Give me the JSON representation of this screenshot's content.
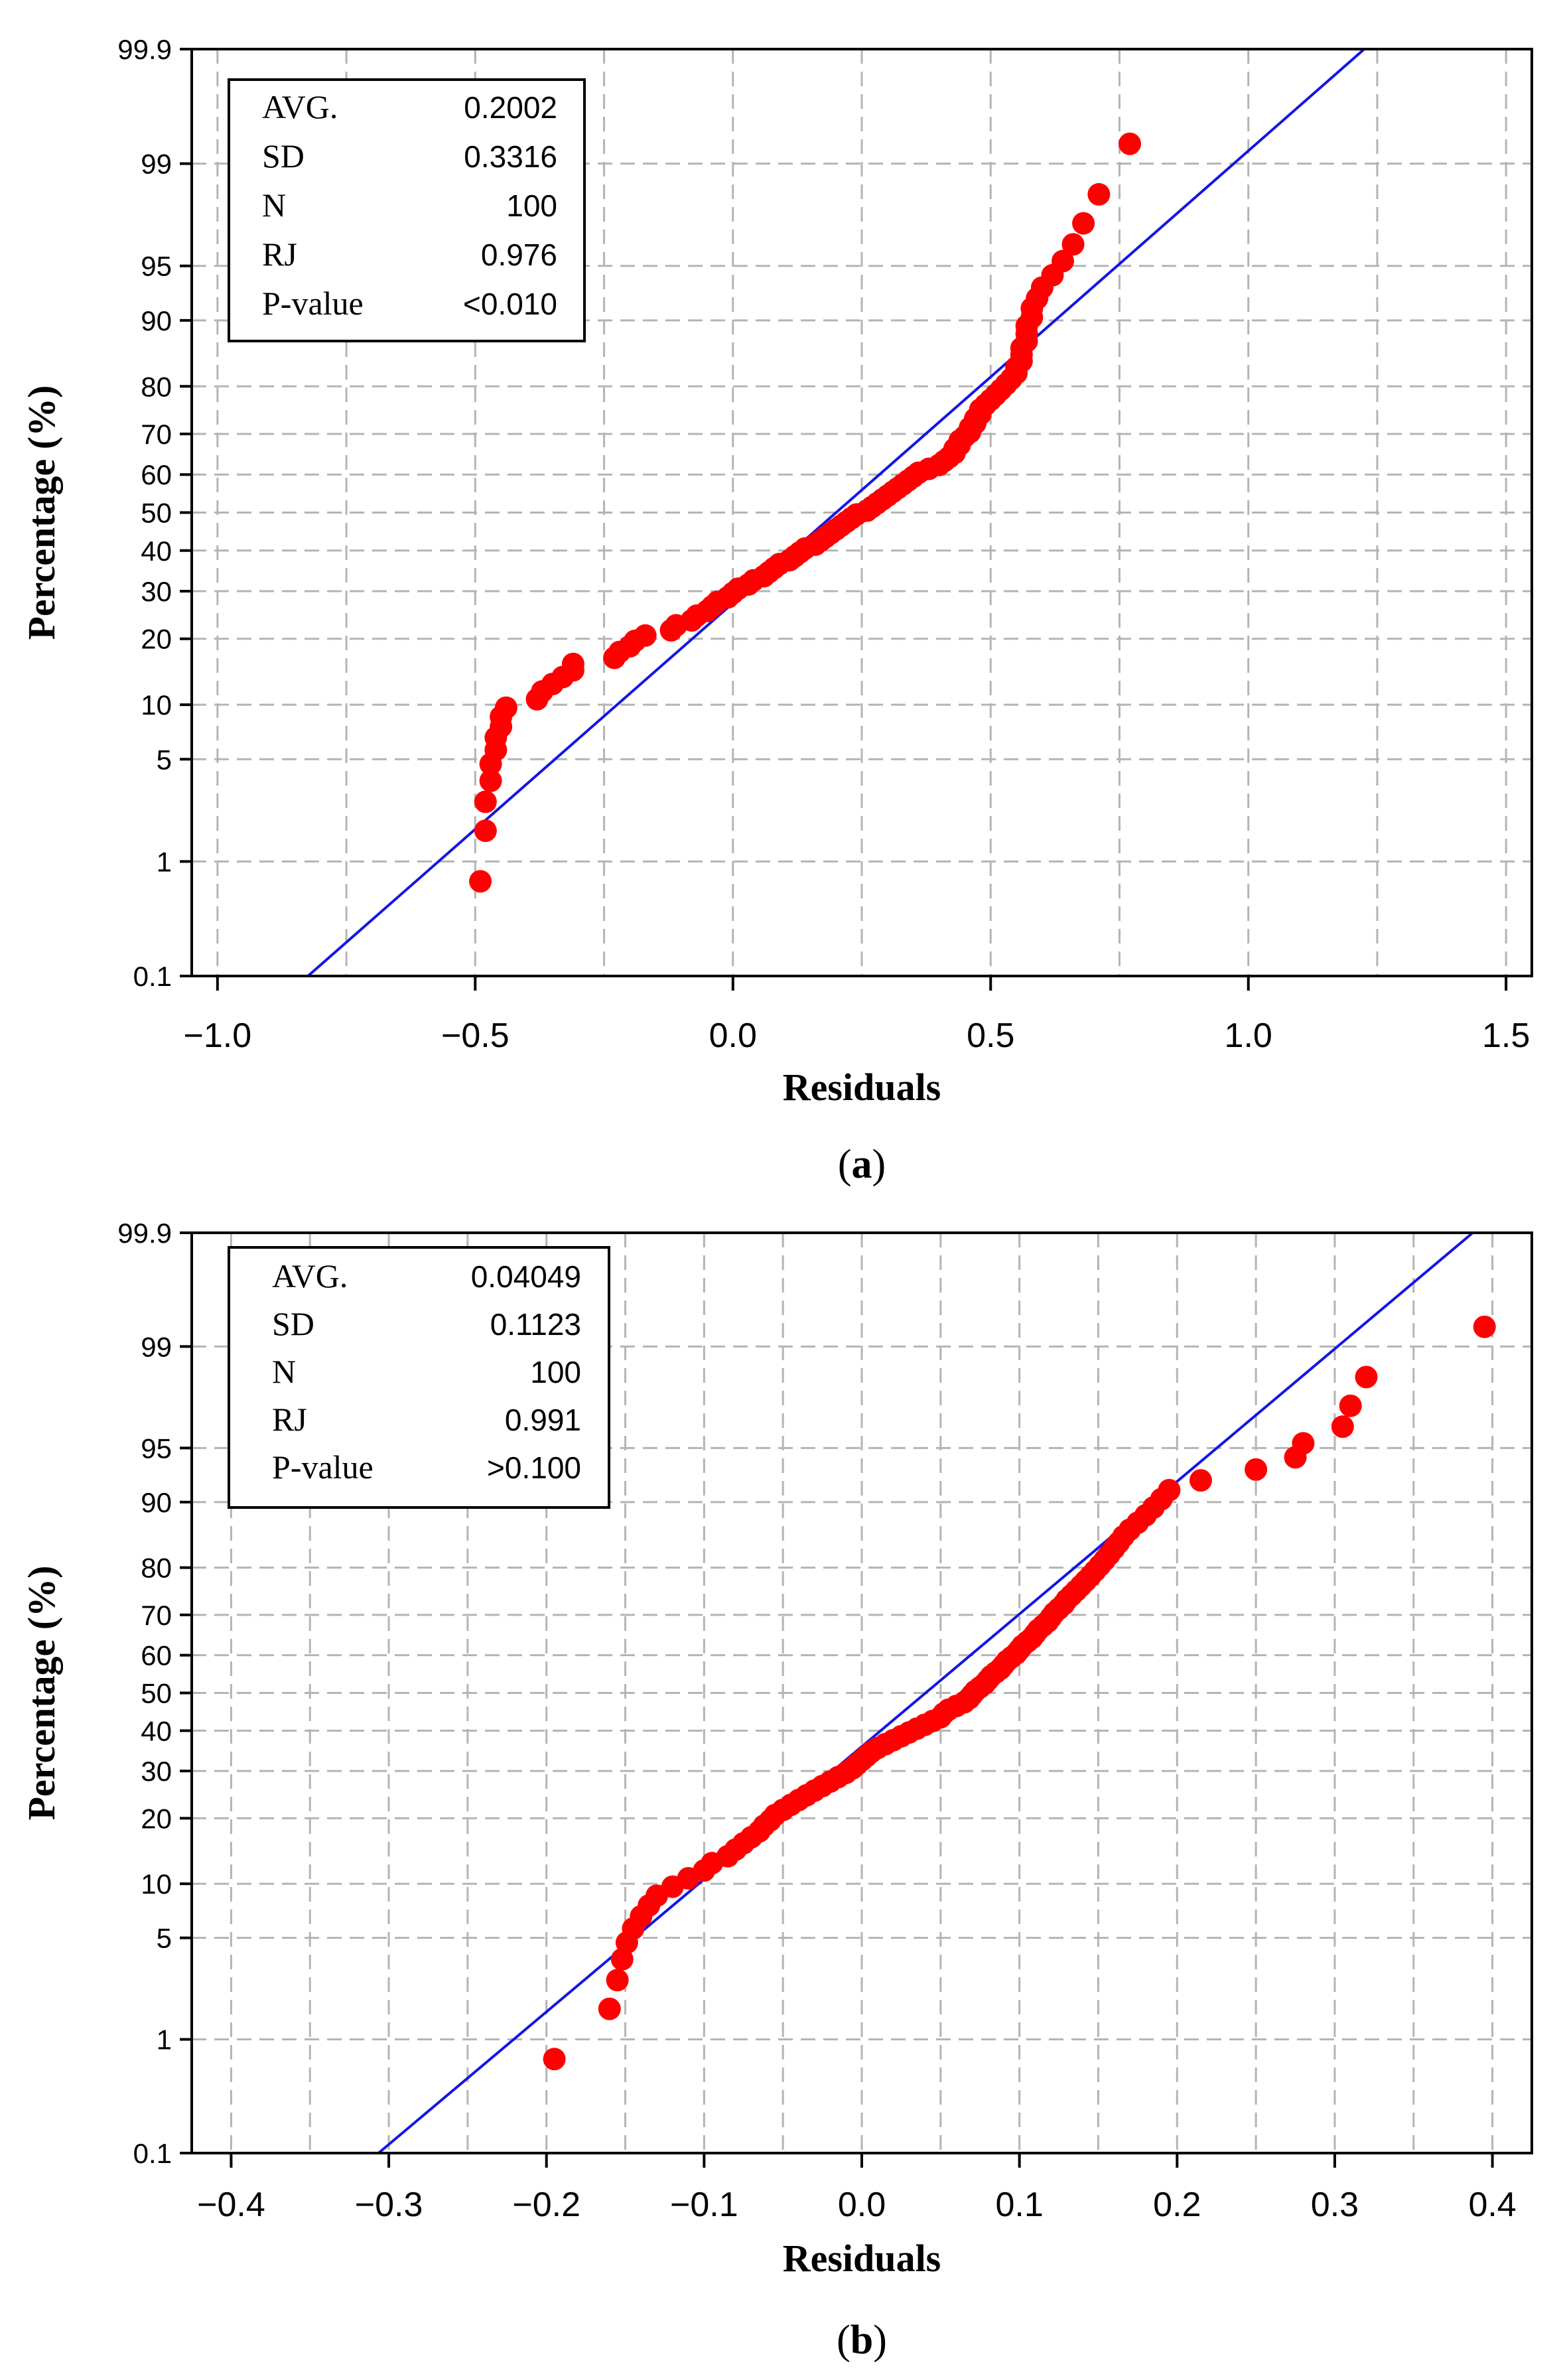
{
  "chart_data": [
    {
      "type": "scatter",
      "panel_label": "a",
      "xlabel": "Residuals",
      "ylabel": "Percentage (%)",
      "xlim": [
        -1.05,
        1.55
      ],
      "x_ticks": [
        -1.0,
        -0.5,
        0.0,
        0.5,
        1.0,
        1.5
      ],
      "x_tick_labels": [
        "−1.0",
        "−0.5",
        "0.0",
        "0.5",
        "1.0",
        "1.5"
      ],
      "x_minor_grid": [
        -0.75,
        -0.25,
        0.25,
        0.75,
        1.25
      ],
      "y_scale": "normal-probability",
      "ylim": [
        0.1,
        99.9
      ],
      "y_ticks": [
        0.1,
        1,
        5,
        10,
        20,
        30,
        40,
        50,
        60,
        70,
        80,
        90,
        95,
        99,
        99.9
      ],
      "y_tick_labels": [
        "0.1",
        "1",
        "5",
        "10",
        "20",
        "30",
        "40",
        "50",
        "60",
        "70",
        "80",
        "90",
        "95",
        "99",
        "99.9"
      ],
      "grid": true,
      "fit_line": {
        "mean": 0.2002,
        "sd": 0.3316
      },
      "stats": [
        {
          "label": "AVG.",
          "value": "0.2002"
        },
        {
          "label": "SD",
          "value": "0.3316"
        },
        {
          "label": "N",
          "value": "100"
        },
        {
          "label": "RJ",
          "value": "0.976"
        },
        {
          "label": "P-value",
          "value": "<0.010"
        }
      ],
      "residuals": [
        -0.49,
        -0.48,
        -0.48,
        -0.47,
        -0.47,
        -0.46,
        -0.46,
        -0.45,
        -0.45,
        -0.44,
        -0.38,
        -0.37,
        -0.35,
        -0.33,
        -0.31,
        -0.31,
        -0.23,
        -0.22,
        -0.2,
        -0.19,
        -0.17,
        -0.12,
        -0.11,
        -0.08,
        -0.07,
        -0.05,
        -0.04,
        -0.03,
        -0.01,
        0.0,
        0.01,
        0.03,
        0.04,
        0.06,
        0.07,
        0.08,
        0.09,
        0.11,
        0.12,
        0.13,
        0.14,
        0.16,
        0.17,
        0.18,
        0.19,
        0.2,
        0.21,
        0.22,
        0.23,
        0.24,
        0.26,
        0.27,
        0.28,
        0.29,
        0.3,
        0.31,
        0.32,
        0.33,
        0.34,
        0.35,
        0.36,
        0.38,
        0.4,
        0.41,
        0.42,
        0.43,
        0.43,
        0.44,
        0.44,
        0.45,
        0.46,
        0.46,
        0.47,
        0.47,
        0.48,
        0.48,
        0.49,
        0.5,
        0.51,
        0.52,
        0.53,
        0.54,
        0.55,
        0.55,
        0.56,
        0.56,
        0.56,
        0.57,
        0.57,
        0.57,
        0.58,
        0.58,
        0.59,
        0.6,
        0.62,
        0.64,
        0.66,
        0.68,
        0.71,
        0.77
      ]
    },
    {
      "type": "scatter",
      "panel_label": "b",
      "xlabel": "Residuals",
      "ylabel": "Percentage (%)",
      "xlim": [
        -0.425,
        0.425
      ],
      "x_ticks": [
        -0.4,
        -0.3,
        -0.2,
        -0.1,
        0.0,
        0.1,
        0.2,
        0.3,
        0.4
      ],
      "x_tick_labels": [
        "−0.4",
        "−0.3",
        "−0.2",
        "−0.1",
        "0.0",
        "0.1",
        "0.2",
        "0.3",
        "0.4"
      ],
      "x_minor_grid": [
        -0.35,
        -0.25,
        -0.15,
        -0.05,
        0.05,
        0.15,
        0.25,
        0.35
      ],
      "y_scale": "normal-probability",
      "ylim": [
        0.1,
        99.9
      ],
      "y_ticks": [
        0.1,
        1,
        5,
        10,
        20,
        30,
        40,
        50,
        60,
        70,
        80,
        90,
        95,
        99,
        99.9
      ],
      "y_tick_labels": [
        "0.1",
        "1",
        "5",
        "10",
        "20",
        "30",
        "40",
        "50",
        "60",
        "70",
        "80",
        "90",
        "95",
        "99",
        "99.9"
      ],
      "grid": true,
      "fit_line": {
        "mean": 0.04049,
        "sd": 0.1123
      },
      "stats": [
        {
          "label": "AVG.",
          "value": "0.04049"
        },
        {
          "label": "SD",
          "value": "0.1123"
        },
        {
          "label": "N",
          "value": "100"
        },
        {
          "label": "RJ",
          "value": "0.991"
        },
        {
          "label": "P-value",
          "value": ">0.100"
        }
      ],
      "residuals": [
        -0.195,
        -0.16,
        -0.155,
        -0.152,
        -0.149,
        -0.145,
        -0.14,
        -0.135,
        -0.13,
        -0.12,
        -0.11,
        -0.1,
        -0.095,
        -0.085,
        -0.08,
        -0.075,
        -0.07,
        -0.065,
        -0.062,
        -0.058,
        -0.055,
        -0.05,
        -0.045,
        -0.04,
        -0.035,
        -0.03,
        -0.025,
        -0.02,
        -0.015,
        -0.01,
        -0.006,
        -0.003,
        0.0,
        0.003,
        0.006,
        0.01,
        0.015,
        0.02,
        0.025,
        0.03,
        0.035,
        0.04,
        0.045,
        0.05,
        0.052,
        0.055,
        0.06,
        0.065,
        0.068,
        0.07,
        0.072,
        0.075,
        0.078,
        0.08,
        0.082,
        0.085,
        0.088,
        0.09,
        0.092,
        0.095,
        0.098,
        0.1,
        0.102,
        0.105,
        0.108,
        0.11,
        0.112,
        0.115,
        0.118,
        0.12,
        0.122,
        0.125,
        0.128,
        0.13,
        0.133,
        0.136,
        0.139,
        0.142,
        0.145,
        0.148,
        0.151,
        0.154,
        0.157,
        0.16,
        0.163,
        0.166,
        0.17,
        0.175,
        0.18,
        0.185,
        0.19,
        0.195,
        0.215,
        0.25,
        0.275,
        0.28,
        0.305,
        0.31,
        0.32,
        0.395
      ]
    }
  ]
}
